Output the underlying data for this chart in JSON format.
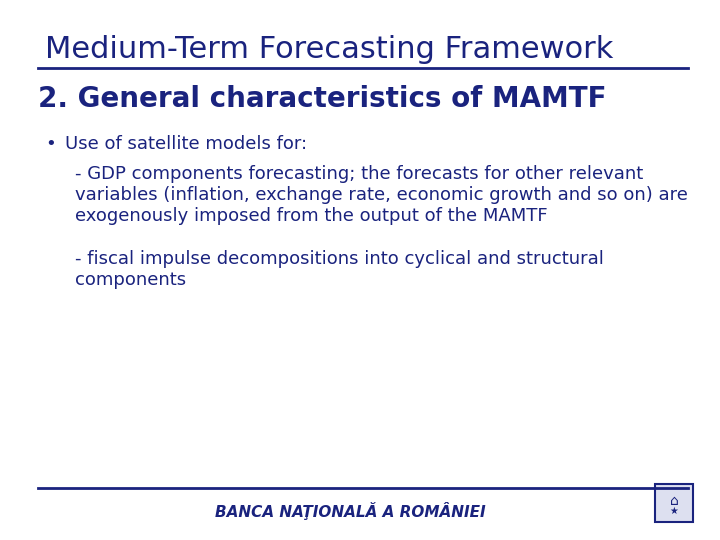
{
  "title": "Medium-Term Forecasting Framework",
  "title_color": "#1a237e",
  "background_color": "#ffffff",
  "heading": "2. General characteristics of MAMTF",
  "heading_color": "#1a237e",
  "bullet_symbol": "•",
  "bullet_text": "Use of satellite models for:",
  "bullet_color": "#1a237e",
  "para1_line1": "- GDP components forecasting; the forecasts for other relevant",
  "para1_line2": "variables (inflation, exchange rate, economic growth and so on) are",
  "para1_line3": "exogenously imposed from the output of the MAMTF",
  "para2_line1": "- fiscal impulse decompositions into cyclical and structural",
  "para2_line2": "components",
  "text_color": "#1a237e",
  "footer_text": "BANCA NAŢIONALĂ A ROMÂNIEI",
  "footer_color": "#1a237e",
  "line_color": "#1a237e",
  "title_fontsize": 22,
  "heading_fontsize": 20,
  "bullet_fontsize": 13,
  "body_fontsize": 13,
  "footer_fontsize": 11
}
